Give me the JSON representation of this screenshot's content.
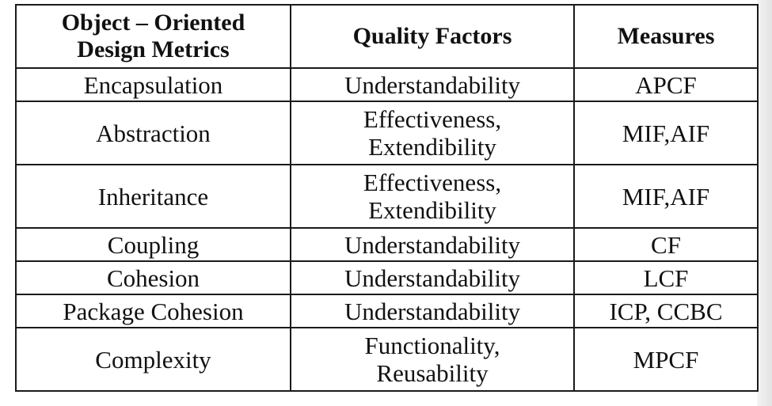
{
  "table": {
    "headers": {
      "metric_line1": "Object – Oriented",
      "metric_line2": "Design Metrics",
      "quality": "Quality Factors",
      "measures": "Measures"
    },
    "rows": [
      {
        "metric": "Encapsulation",
        "quality": [
          "Understandability"
        ],
        "measures": "APCF"
      },
      {
        "metric": "Abstraction",
        "quality": [
          "Effectiveness,",
          "Extendibility"
        ],
        "measures": "MIF,AIF"
      },
      {
        "metric": "Inheritance",
        "quality": [
          "Effectiveness,",
          "Extendibility"
        ],
        "measures": "MIF,AIF"
      },
      {
        "metric": "Coupling",
        "quality": [
          "Understandability"
        ],
        "measures": "CF"
      },
      {
        "metric": "Cohesion",
        "quality": [
          "Understandability"
        ],
        "measures": "LCF"
      },
      {
        "metric": "Package Cohesion",
        "quality": [
          "Understandability"
        ],
        "measures": "ICP, CCBC"
      },
      {
        "metric": "Complexity",
        "quality": [
          "Functionality,",
          "Reusability"
        ],
        "measures": "MPCF"
      }
    ]
  }
}
